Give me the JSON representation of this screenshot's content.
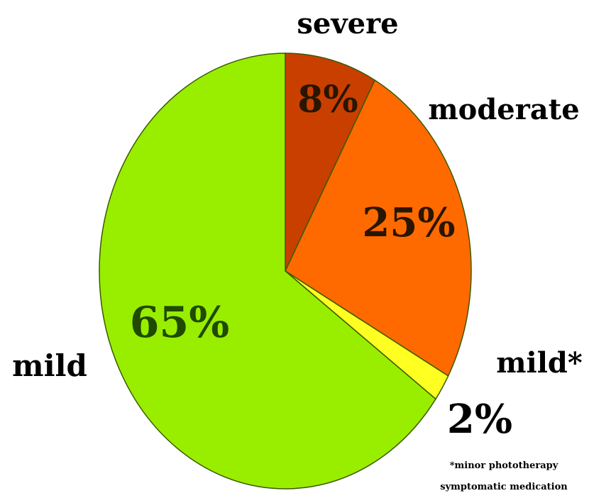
{
  "chart_data": {
    "type": "pie",
    "start_angle_deg": 0,
    "direction": "clockwise",
    "slices": [
      {
        "label": "severe",
        "value": 8,
        "value_label": "8%",
        "color": "#c93f00",
        "value_label_color": "#2a1500"
      },
      {
        "label": "moderate",
        "value": 25,
        "value_label": "25%",
        "color": "#ff6a00",
        "value_label_color": "#2a1500"
      },
      {
        "label": "mild*",
        "value": 2,
        "value_label": "2%",
        "color": "#ffff22",
        "value_label_color": "#000000"
      },
      {
        "label": "mild",
        "value": 65,
        "value_label": "65%",
        "color": "#99ee00",
        "value_label_color": "#1f4a00"
      }
    ],
    "footnote": [
      "*minor phototherapy",
      "symptomatic medication"
    ],
    "outline_color": "#3a5a00"
  }
}
